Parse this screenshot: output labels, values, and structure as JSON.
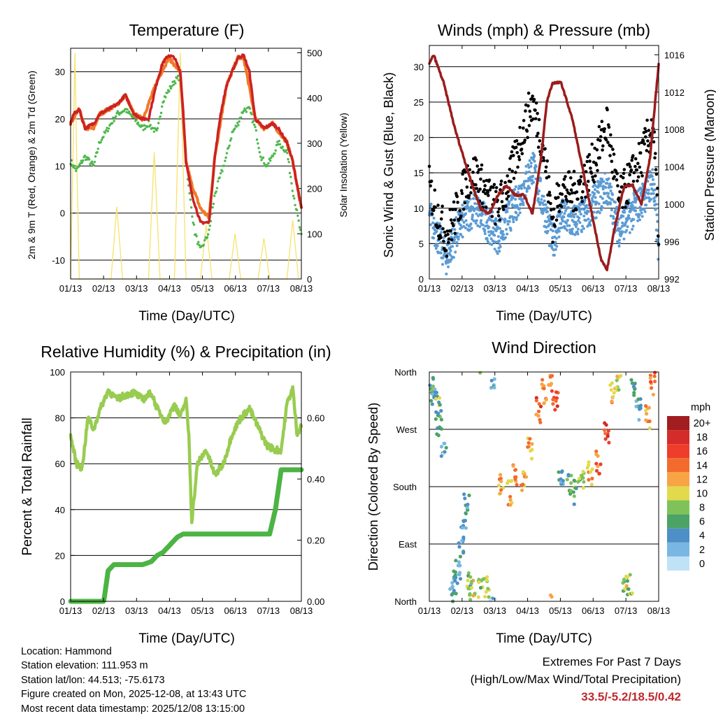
{
  "panels": {
    "temperature": {
      "title": "Temperature (F)",
      "ylabel_left": "2m & 9m T (Red, Orange) & 2m Td (Green)",
      "ylabel_right": "Solar Insolation (Yellow)",
      "xlabel": "Time (Day/UTC)"
    },
    "winds": {
      "title": "Winds (mph) & Pressure (mb)",
      "ylabel_left": "Sonic Wind & Gust (Blue, Black)",
      "ylabel_right": "Station Pressure (Maroon)",
      "xlabel": "Time (Day/UTC)"
    },
    "humidity": {
      "title": "Relative Humidity (%) & Precipitation (in)",
      "ylabel_left": "Percent & Total Rainfall",
      "xlabel": "Time (Day/UTC)"
    },
    "direction": {
      "title": "Wind Direction",
      "ylabel_left": "Direction (Colored By Speed)",
      "xlabel": "Time (Day/UTC)",
      "legend_title": "mph"
    }
  },
  "info": {
    "location": "Location: Hammond",
    "elevation": "Station elevation: 111.953 m",
    "latlon": "Station lat/lon: 44.513; -75.6173",
    "created": "Figure created on Mon, 2025-12-08, at 13:43 UTC",
    "recent": "Most recent data timestamp: 2025/12/08 13:15:00"
  },
  "extremes": {
    "line1": "Extremes For Past 7 Days",
    "line2": "(High/Low/Max Wind/Total Precipitation)",
    "values": "33.5/-5.2/18.5/0.42"
  },
  "colors": {
    "temp2m": "#cc2222",
    "temp9m": "#f07a28",
    "dewpoint": "#4cb84c",
    "solar": "#f7e26a",
    "wind": "#5b9bd5",
    "gust": "#000000",
    "pressure": "#9b1c1c",
    "rh": "#98cc50",
    "precip": "#4cb444"
  },
  "chart_data": [
    {
      "type": "line",
      "title": "Temperature (F)",
      "x": [
        "01/13",
        "02/13",
        "03/13",
        "04/13",
        "05/13",
        "06/13",
        "07/13",
        "08/13"
      ],
      "yticks_left": [
        "-10",
        "0",
        "10",
        "20",
        "30"
      ],
      "ylim_left": [
        -14,
        35
      ],
      "yticks_right": [
        "0",
        "100",
        "200",
        "300",
        "400",
        "500"
      ],
      "ylim_right": [
        0,
        510
      ],
      "series": [
        {
          "name": "2m T",
          "t": [
            0,
            0.1,
            0.3,
            0.5,
            0.8,
            1,
            1.3,
            1.6,
            1.9,
            2.2,
            2.5,
            2.7,
            3,
            3.2,
            3.4,
            3.6,
            3.8,
            3.9,
            4,
            4.2,
            4.5,
            4.8,
            5,
            5.2,
            5.4,
            5.6,
            5.8,
            6,
            6.2,
            6.4,
            6.7,
            7,
            7.2,
            7.5,
            7.7,
            8
          ],
          "v": [
            19,
            21,
            22,
            18,
            19,
            21,
            22,
            23,
            25,
            21,
            20,
            20,
            28,
            32,
            33.5,
            33,
            30,
            22,
            11,
            4,
            -2,
            -2,
            12,
            21,
            27,
            30,
            33,
            33.5,
            30,
            20,
            18,
            19,
            18,
            15,
            11,
            1
          ]
        },
        {
          "name": "9m T",
          "t": [
            0,
            0.3,
            0.5,
            0.8,
            1,
            1.3,
            1.6,
            1.9,
            2.2,
            2.5,
            3,
            3.4,
            3.8,
            4,
            4.2,
            4.5,
            4.8,
            5,
            5.4,
            5.8,
            6,
            6.4,
            6.7,
            7,
            7.5,
            7.7,
            8
          ],
          "v": [
            19,
            22,
            18,
            18,
            21,
            22,
            23,
            25,
            21,
            20,
            28,
            33,
            30,
            11,
            6,
            1,
            -1,
            12,
            27,
            33,
            33,
            20,
            18,
            19,
            15,
            11,
            1
          ]
        },
        {
          "name": "2m Td",
          "t": [
            0,
            0.2,
            0.5,
            0.8,
            1,
            1.3,
            1.6,
            1.9,
            2.2,
            2.5,
            2.7,
            3,
            3.2,
            3.4,
            3.6,
            3.8,
            3.9,
            4,
            4.1,
            4.3,
            4.5,
            4.8,
            5,
            5.2,
            5.4,
            5.6,
            5.8,
            6,
            6.2,
            6.4,
            6.6,
            6.8,
            7,
            7.2,
            7.5,
            7.7,
            8
          ],
          "v": [
            11,
            9,
            12,
            10,
            15,
            18,
            21,
            22,
            20,
            18,
            19,
            17,
            24,
            26,
            28,
            29,
            22,
            12,
            5,
            -4,
            -8,
            -4,
            4,
            8,
            12,
            17,
            19,
            22,
            22,
            18,
            12,
            10,
            12,
            15,
            13,
            5,
            -5
          ]
        },
        {
          "name": "Solar",
          "t": [
            0,
            0.15,
            0.2,
            0.3,
            0.4,
            0.55,
            1.4,
            1.6,
            1.8,
            2.7,
            2.9,
            3.1,
            3.6,
            3.8,
            4,
            4.5,
            4.7,
            4.9,
            5.5,
            5.7,
            5.9,
            6.5,
            6.7,
            6.9,
            7.5,
            7.7,
            7.9
          ],
          "v": [
            0,
            500,
            300,
            0,
            0,
            0,
            0,
            160,
            0,
            0,
            280,
            0,
            0,
            500,
            0,
            0,
            120,
            0,
            0,
            100,
            0,
            0,
            90,
            0,
            0,
            130,
            0
          ]
        }
      ]
    },
    {
      "type": "line",
      "title": "Winds (mph) & Pressure (mb)",
      "x": [
        "01/13",
        "02/13",
        "03/13",
        "04/13",
        "05/13",
        "06/13",
        "07/13",
        "08/13"
      ],
      "yticks_left": [
        "0",
        "5",
        "10",
        "15",
        "20",
        "25",
        "30"
      ],
      "ylim_left": [
        0,
        33
      ],
      "yticks_right": [
        "992",
        "996",
        "1000",
        "1004",
        "1008",
        "1012",
        "1016"
      ],
      "ylim_right": [
        992,
        1017
      ],
      "series": [
        {
          "name": "Sonic Wind",
          "t": [
            0,
            0.3,
            0.6,
            1,
            1.3,
            1.6,
            2,
            2.4,
            2.8,
            3.2,
            3.6,
            4,
            4.3,
            4.6,
            5,
            5.4,
            5.8,
            6.2,
            6.6,
            7,
            7.4,
            7.8,
            8
          ],
          "v": [
            9,
            6,
            3,
            7,
            9,
            10,
            8,
            6,
            9,
            12,
            16,
            10,
            5,
            9,
            8,
            9,
            11,
            13,
            7,
            9,
            11,
            14,
            4
          ]
        },
        {
          "name": "Gust",
          "t": [
            0,
            0.3,
            0.6,
            1,
            1.3,
            1.6,
            2,
            2.4,
            2.8,
            3.2,
            3.6,
            4,
            4.3,
            4.6,
            5,
            5.4,
            5.8,
            6.2,
            6.6,
            7,
            7.4,
            7.8,
            8
          ],
          "v": [
            13,
            9,
            6,
            10,
            14,
            15,
            12,
            10,
            14,
            20,
            25,
            18,
            8,
            13,
            12,
            14,
            17,
            22,
            11,
            14,
            17,
            22,
            7
          ]
        },
        {
          "name": "Pressure",
          "t": [
            0,
            0.15,
            0.5,
            0.9,
            1.2,
            1.5,
            1.8,
            2.1,
            2.4,
            2.7,
            3,
            3.3,
            3.6,
            3.9,
            4.1,
            4.3,
            4.6,
            5,
            5.4,
            5.8,
            6,
            6.2,
            6.5,
            6.8,
            7.1,
            7.4,
            7.7,
            8
          ],
          "v": [
            1015,
            1016,
            1013,
            1008,
            1005,
            1002,
            999.5,
            999,
            1001,
            1002,
            1001,
            1001,
            999,
            1005,
            1011,
            1013,
            1013,
            1009,
            1003,
            997,
            994,
            993,
            998,
            1002,
            1002,
            1000,
            1005,
            1015
          ]
        }
      ]
    },
    {
      "type": "line",
      "title": "Relative Humidity (%) & Precipitation (in)",
      "x": [
        "01/13",
        "02/13",
        "03/13",
        "04/13",
        "05/13",
        "06/13",
        "07/13",
        "08/13"
      ],
      "yticks_left": [
        "0",
        "20",
        "40",
        "60",
        "80",
        "100"
      ],
      "ylim_left": [
        0,
        100
      ],
      "yticks_right": [
        "0.00",
        "0.20",
        "0.40",
        "0.60"
      ],
      "ylim_right": [
        0,
        0.75
      ],
      "series": [
        {
          "name": "Relative Humidity",
          "t": [
            0,
            0.2,
            0.4,
            0.6,
            0.8,
            1,
            1.3,
            1.6,
            1.9,
            2.2,
            2.5,
            2.8,
            3,
            3.3,
            3.6,
            3.8,
            4,
            4.1,
            4.2,
            4.4,
            4.7,
            5,
            5.3,
            5.6,
            5.9,
            6.2,
            6.5,
            6.8,
            7.1,
            7.3,
            7.5,
            7.7,
            7.85,
            8
          ],
          "v": [
            72,
            60,
            58,
            80,
            75,
            83,
            92,
            88,
            90,
            91,
            88,
            91,
            84,
            78,
            86,
            80,
            88,
            72,
            35,
            60,
            66,
            55,
            60,
            73,
            80,
            84,
            76,
            68,
            66,
            66,
            86,
            93,
            73,
            77
          ]
        },
        {
          "name": "Total Precipitation",
          "t": [
            0,
            0.6,
            1.15,
            1.3,
            1.5,
            2,
            2.5,
            2.8,
            3,
            3.2,
            3.5,
            3.7,
            3.9,
            4,
            4.5,
            5,
            5.5,
            6,
            6.5,
            6.9,
            7.1,
            7.3,
            8
          ],
          "v": [
            0,
            0,
            0,
            0.1,
            0.12,
            0.12,
            0.12,
            0.13,
            0.15,
            0.16,
            0.19,
            0.21,
            0.22,
            0.22,
            0.22,
            0.22,
            0.22,
            0.22,
            0.22,
            0.22,
            0.3,
            0.43,
            0.43
          ]
        }
      ]
    },
    {
      "type": "scatter",
      "title": "Wind Direction",
      "x": [
        "01/13",
        "02/13",
        "03/13",
        "04/13",
        "05/13",
        "06/13",
        "07/13",
        "08/13"
      ],
      "yticks": [
        "North",
        "East",
        "South",
        "West",
        "North"
      ],
      "ylim": [
        0,
        360
      ],
      "legend_levels": [
        "20+",
        "18",
        "16",
        "14",
        "12",
        "10",
        "8",
        "6",
        "4",
        "2",
        "0"
      ],
      "legend_colors": [
        "#a11d20",
        "#d42b2b",
        "#ef3d2c",
        "#f36b2c",
        "#f8a444",
        "#e3d94d",
        "#7fc25a",
        "#4ba365",
        "#4d8fc6",
        "#79b6e3",
        "#bfe2f7"
      ],
      "series": [
        {
          "name": "direction",
          "t": [
            0.1,
            0.2,
            0.3,
            0.35,
            0.5,
            0.8,
            0.9,
            1,
            1.1,
            1.2,
            1.3,
            1.4,
            1.5,
            1.8,
            2.0,
            2.2,
            2.5,
            2.8,
            3.0,
            3.3,
            3.5,
            3.8,
            4.0,
            4.2,
            4.4,
            4.6,
            4.9,
            5.1,
            5.3,
            5.6,
            5.9,
            6.2,
            6.4,
            6.6,
            6.8,
            7.0,
            7.1,
            7.3,
            7.6,
            7.8
          ],
          "v": [
            320,
            340,
            300,
            280,
            240,
            20,
            30,
            50,
            80,
            120,
            150,
            25,
            20,
            15,
            25,
            350,
            180,
            170,
            200,
            190,
            240,
            300,
            330,
            350,
            320,
            200,
            180,
            170,
            190,
            200,
            220,
            260,
            330,
            350,
            20,
            25,
            330,
            300,
            290,
            340
          ],
          "speed": [
            6,
            5,
            7,
            4,
            3,
            3,
            4,
            3,
            4,
            3,
            4,
            7,
            10,
            8,
            9,
            3,
            11,
            12,
            13,
            13,
            12,
            15,
            12,
            13,
            16,
            5,
            6,
            7,
            8,
            12,
            14,
            16,
            12,
            10,
            9,
            8,
            5,
            4,
            12,
            14
          ]
        }
      ]
    }
  ]
}
